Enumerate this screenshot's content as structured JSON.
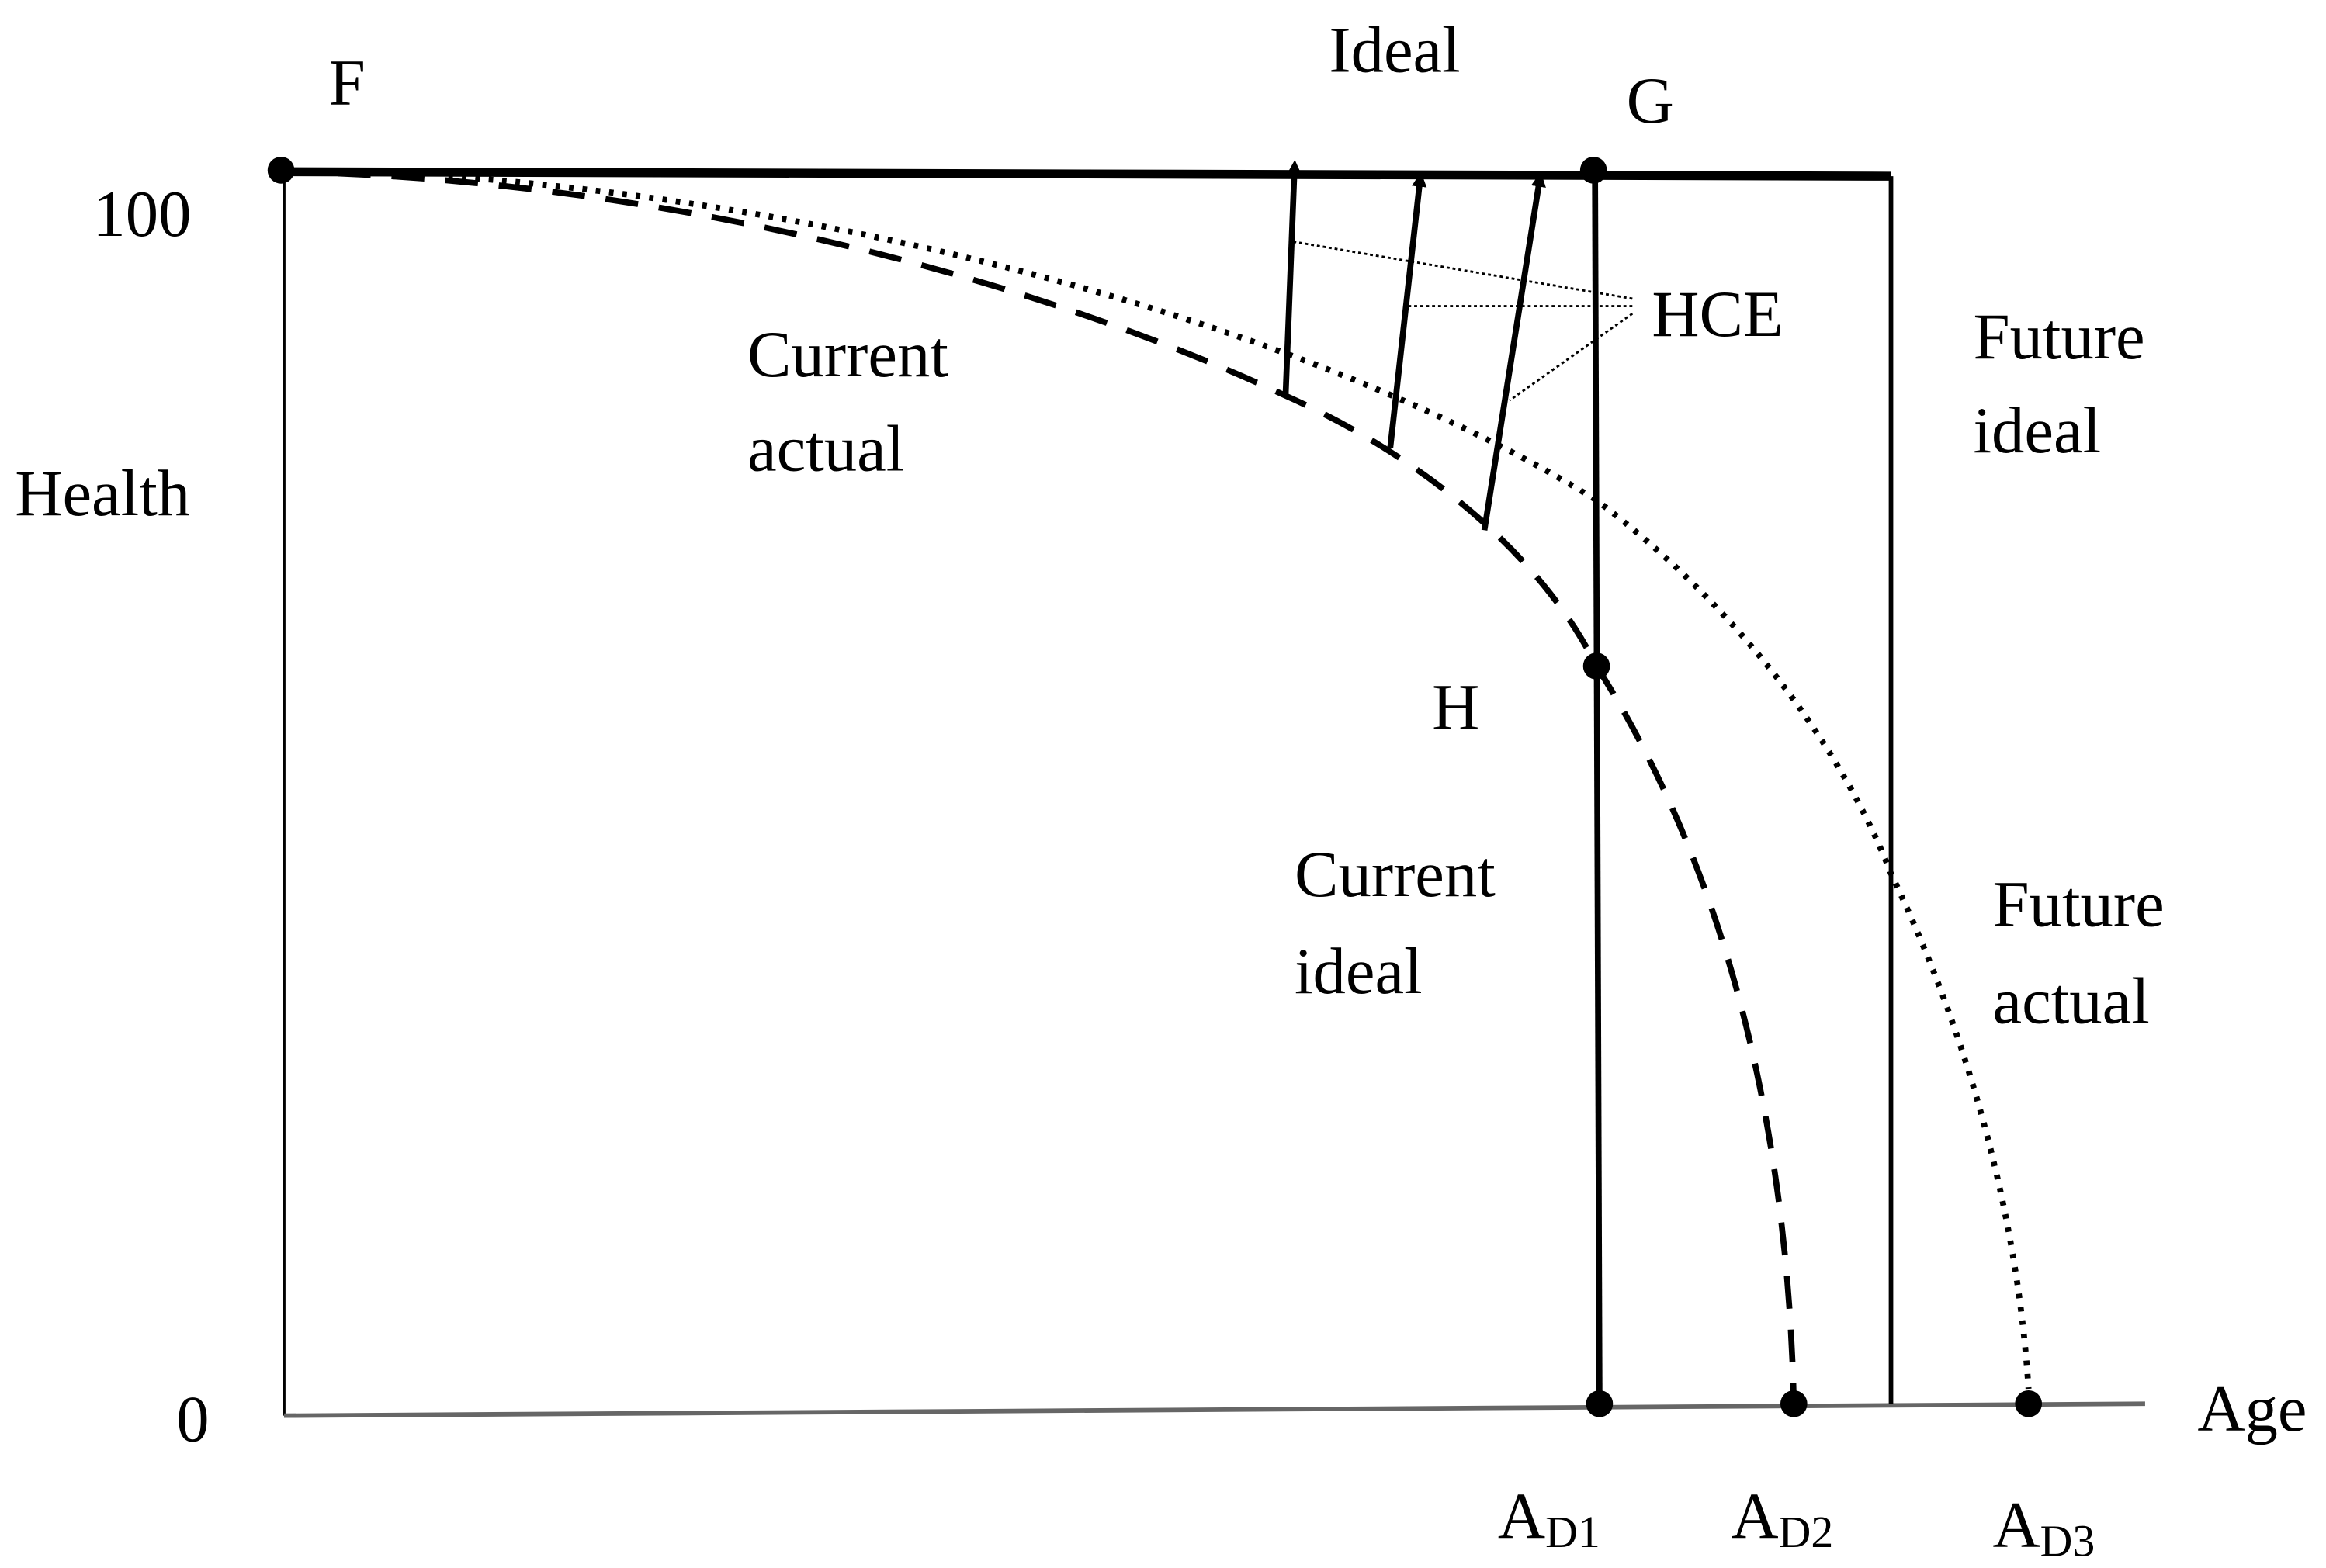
{
  "points": {
    "F": "F",
    "G": "G",
    "H": "H"
  },
  "ideal": "Ideal",
  "hce": "HCE",
  "axis": {
    "y_top": "100",
    "y_bottom": "0",
    "y_label": "Health",
    "x_label": "Age"
  },
  "curves": {
    "current_actual": [
      "Current",
      "actual"
    ],
    "future_ideal": [
      "Future",
      "ideal"
    ],
    "current_ideal": [
      "Current",
      "ideal"
    ],
    "future_actual": [
      "Future",
      "actual"
    ]
  },
  "ages": [
    {
      "main": "A",
      "sub": "D1"
    },
    {
      "main": "A",
      "sub": "D2"
    },
    {
      "main": "A",
      "sub": "D3"
    }
  ]
}
